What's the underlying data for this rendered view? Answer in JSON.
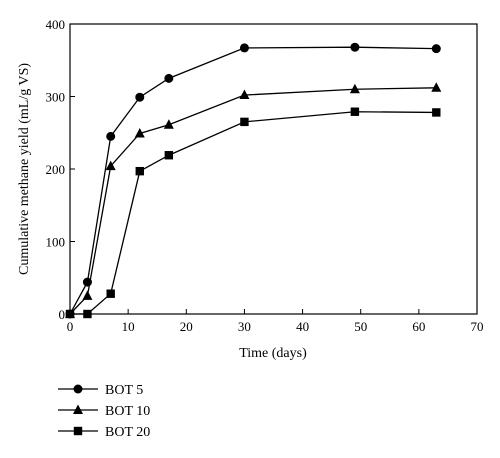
{
  "chart_data": {
    "type": "line",
    "xlabel": "Time (days)",
    "ylabel": "Cumulative methane yield (mL/g VS)",
    "xlim": [
      0,
      70
    ],
    "ylim": [
      0,
      400
    ],
    "xticks": [
      0,
      10,
      20,
      30,
      40,
      50,
      60,
      70
    ],
    "yticks": [
      0,
      100,
      200,
      300,
      400
    ],
    "grid": false,
    "legend_position": "below plot, left",
    "series": [
      {
        "name": "BOT 5",
        "marker": "circle",
        "color": "#000000",
        "x": [
          0,
          3,
          7,
          12,
          17,
          30,
          49,
          63
        ],
        "y": [
          0,
          44,
          245,
          299,
          325,
          367,
          368,
          366
        ]
      },
      {
        "name": "BOT 10",
        "marker": "triangle",
        "color": "#000000",
        "x": [
          0,
          3,
          7,
          12,
          17,
          30,
          49,
          63
        ],
        "y": [
          0,
          25,
          204,
          249,
          261,
          302,
          310,
          312
        ]
      },
      {
        "name": "BOT 20",
        "marker": "square",
        "color": "#000000",
        "x": [
          0,
          3,
          7,
          12,
          17,
          30,
          49,
          63
        ],
        "y": [
          0,
          0,
          28,
          197,
          219,
          265,
          279,
          278
        ]
      }
    ]
  }
}
